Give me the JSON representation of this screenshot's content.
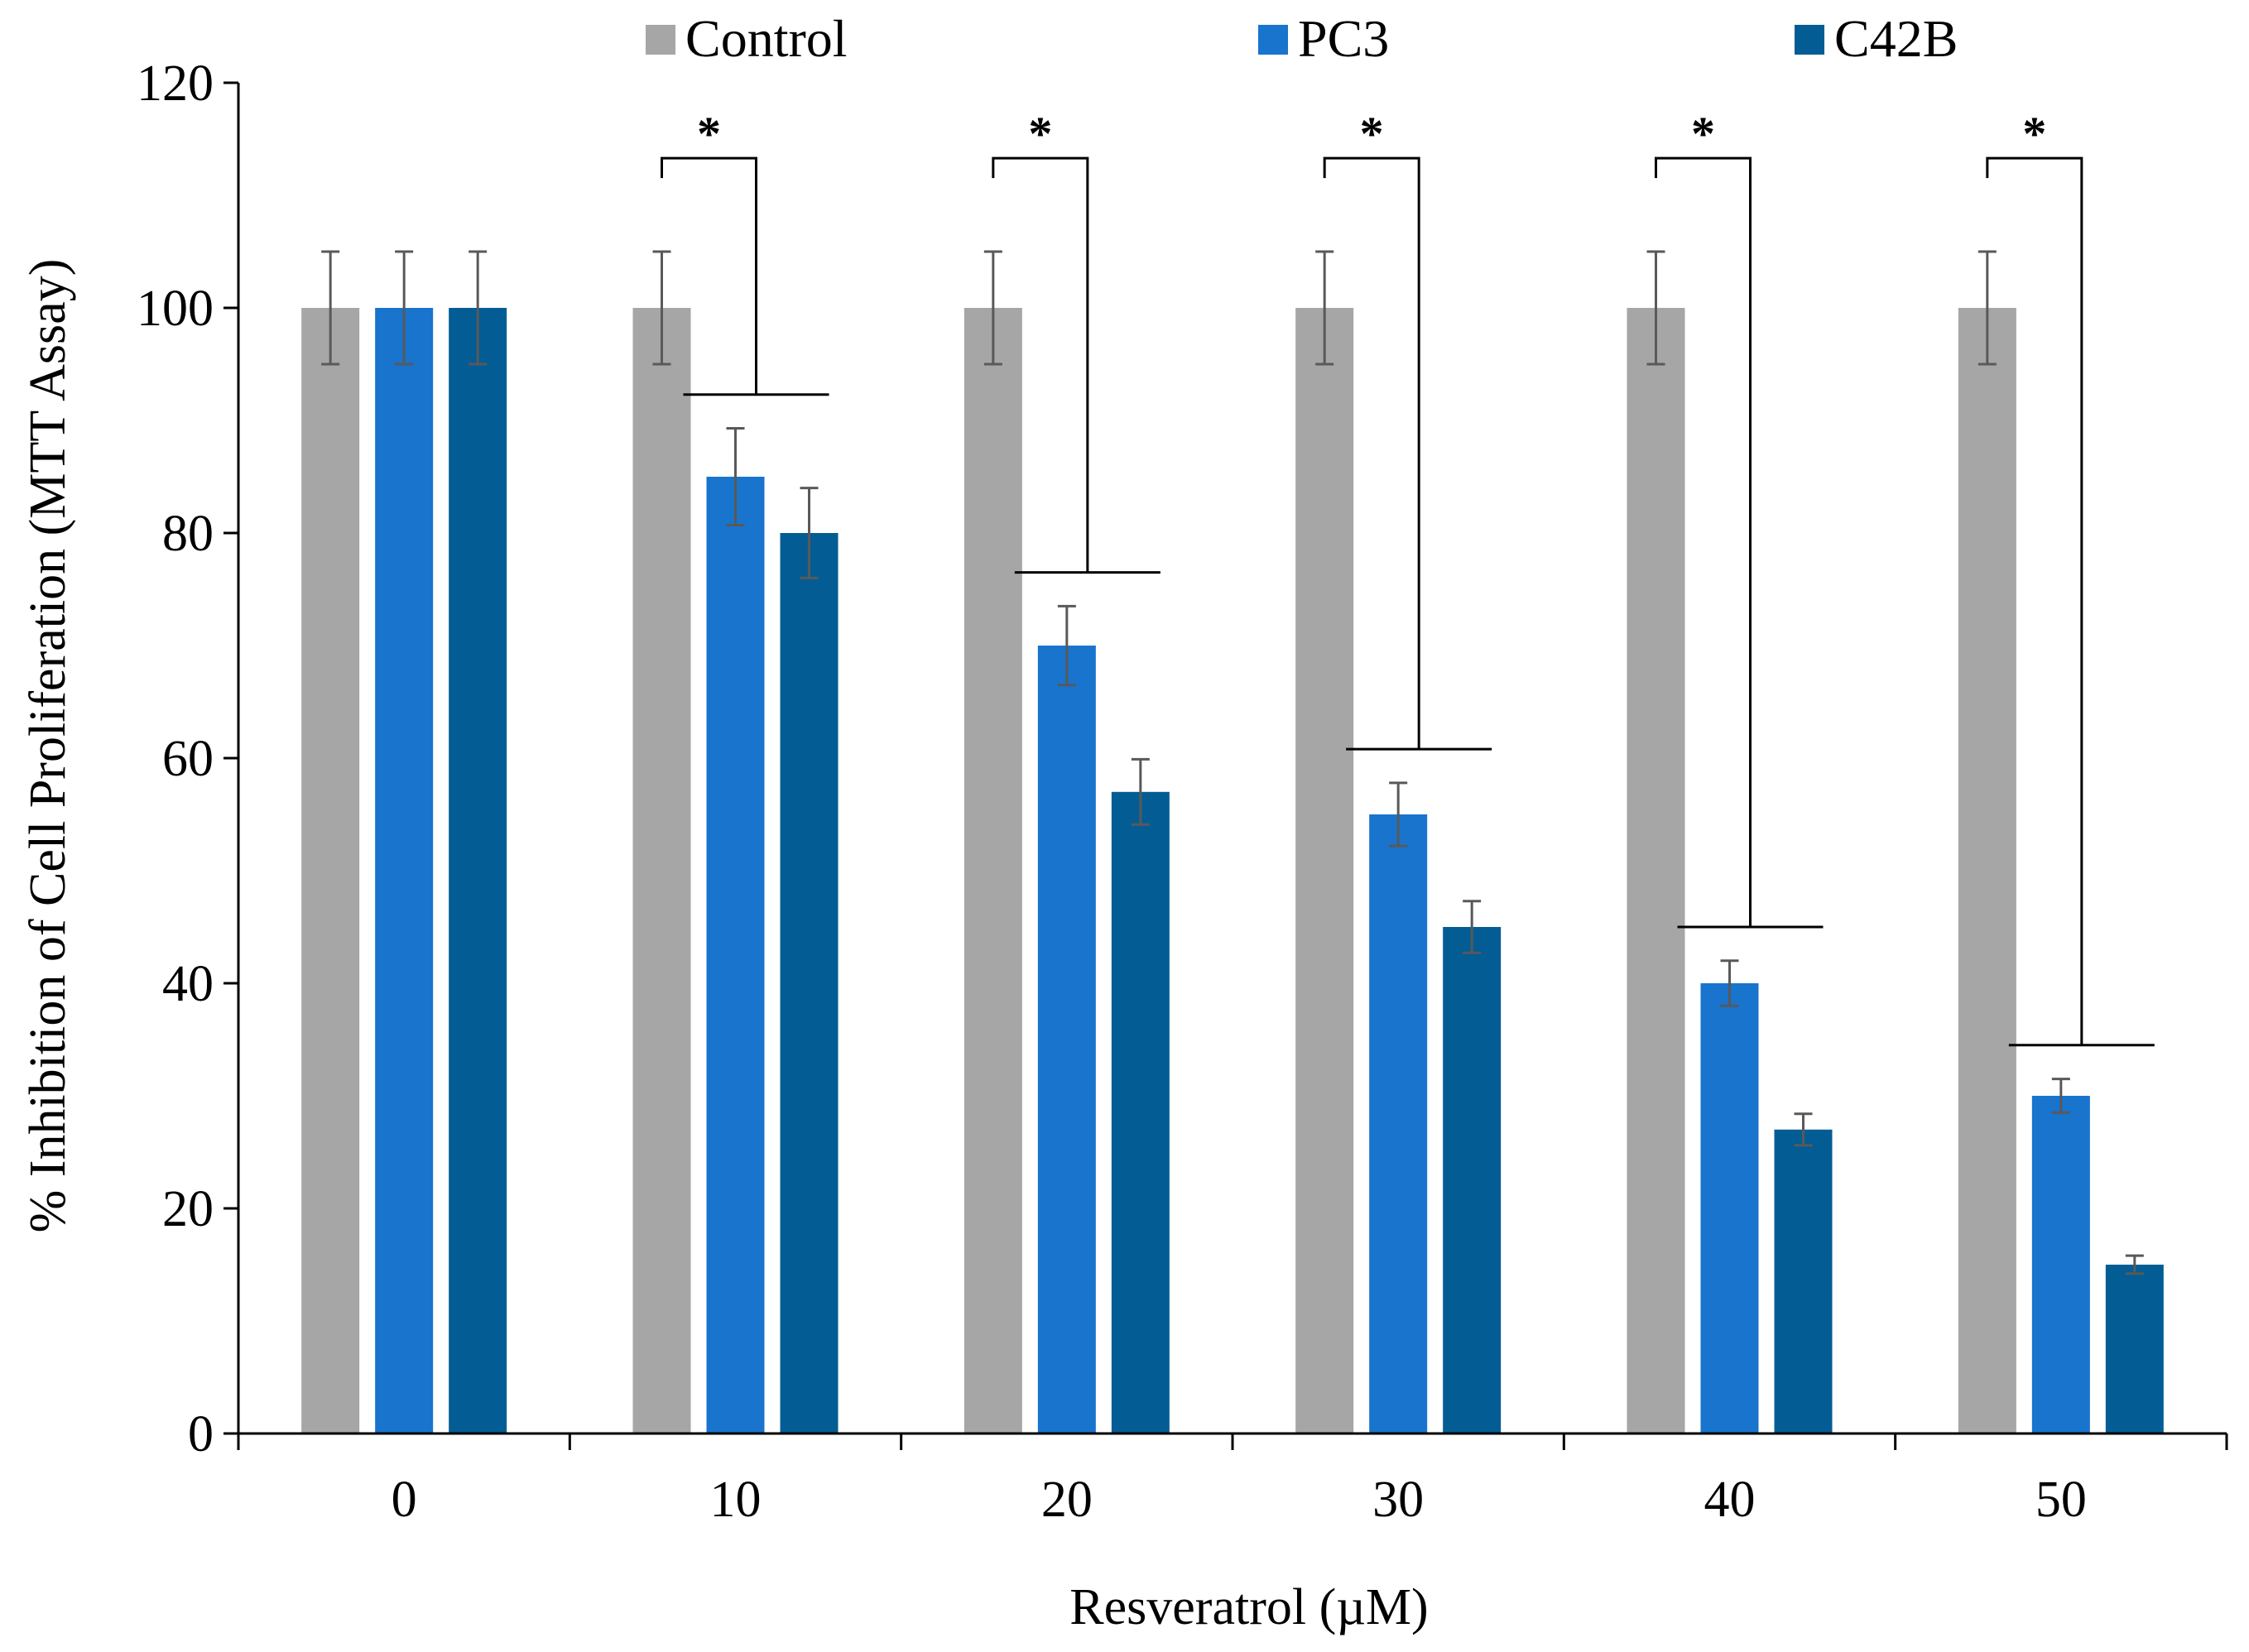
{
  "chart_data": {
    "type": "bar",
    "title": "",
    "xlabel": "Resveratrol (µM)",
    "ylabel": "% Inhibition of Cell Proliferation (MTT Assay)",
    "ylim": [
      0,
      120
    ],
    "yticks": [
      "0",
      "20",
      "40",
      "60",
      "80",
      "100",
      "120"
    ],
    "categories": [
      "0",
      "10",
      "20",
      "30",
      "40",
      "50"
    ],
    "grid": false,
    "legend_position": "top",
    "series": [
      {
        "name": "Control",
        "color": "#a6a6a6",
        "values": [
          100,
          100,
          100,
          100,
          100,
          100
        ],
        "errors": [
          5,
          5,
          5,
          5,
          5,
          5
        ]
      },
      {
        "name": "PC3",
        "color": "#1874cd",
        "values": [
          100,
          85,
          70,
          55,
          40,
          30
        ],
        "errors": [
          5,
          4.3,
          3.5,
          2.8,
          2,
          1.5
        ]
      },
      {
        "name": "C42B",
        "color": "#035d94",
        "values": [
          100,
          80,
          57,
          45,
          27,
          15
        ],
        "errors": [
          5,
          4,
          2.9,
          2.3,
          1.4,
          0.8
        ]
      }
    ],
    "significance": [
      {
        "category": "10",
        "label": "*"
      },
      {
        "category": "20",
        "label": "*"
      },
      {
        "category": "30",
        "label": "*"
      },
      {
        "category": "40",
        "label": "*"
      },
      {
        "category": "50",
        "label": "*"
      }
    ]
  }
}
